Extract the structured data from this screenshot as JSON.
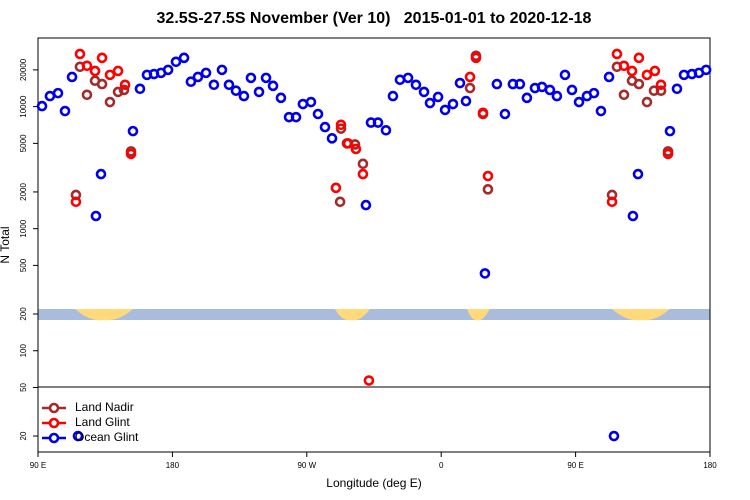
{
  "chart_data": {
    "type": "scatter",
    "title": "32.5S-27.5S November (Ver 10)   2015-01-01 to 2020-12-18",
    "x_label": "Longitude (deg E)",
    "y_label": "N Total",
    "xlim": [
      90,
      540
    ],
    "xticks": [
      {
        "value": 90,
        "label": "90 E"
      },
      {
        "value": 180,
        "label": "180"
      },
      {
        "value": 270,
        "label": "90 W"
      },
      {
        "value": 360,
        "label": "0"
      },
      {
        "value": 450,
        "label": "90 E"
      },
      {
        "value": 540,
        "label": "180"
      }
    ],
    "ylim": [
      14.8,
      36500
    ],
    "log_y": true,
    "yticks": [
      20,
      50,
      100,
      200,
      500,
      1000,
      2000,
      5000,
      10000,
      20000
    ],
    "legend": "bottom-left",
    "series": [
      {
        "name": "Land Nadir",
        "color": "#a52a2a",
        "x": [
          115.4,
          118.1,
          122.8,
          128.2,
          132.9,
          138.2,
          143.6,
          147.6,
          152.3,
          292.3,
          292.9,
          296.9,
          302.3,
          307.6,
          379.3,
          383.3,
          388,
          391.3,
          474.4,
          477.7,
          482.4,
          487.8,
          492.4,
          497.8,
          502.5,
          507.2,
          511.9
        ],
        "values": [
          1890,
          21200,
          12500,
          16300,
          15300,
          10900,
          13200,
          13700,
          4300,
          1660,
          6600,
          5000,
          4900,
          3400,
          14200,
          26100,
          8700,
          2100,
          1890,
          21200,
          12500,
          16300,
          15300,
          10900,
          13500,
          13500,
          4300
        ]
      },
      {
        "name": "Land Glint",
        "color": "#ff0000",
        "x": [
          115.4,
          118.1,
          122.8,
          128.2,
          132.9,
          138.2,
          143.6,
          148.3,
          152.3,
          289.5,
          292.9,
          297.6,
          302.9,
          307.6,
          311.6,
          379.3,
          383.3,
          388,
          391.3,
          474.4,
          477.7,
          482.4,
          487.8,
          492.4,
          497.8,
          503.1,
          507.2,
          511.9
        ],
        "values": [
          1660,
          27000,
          21600,
          19600,
          25100,
          18200,
          19600,
          15100,
          4100,
          2160,
          7100,
          5000,
          4500,
          2800,
          57,
          17500,
          25100,
          8900,
          2700,
          1660,
          27000,
          21600,
          19600,
          25100,
          18200,
          19600,
          15100,
          4100
        ]
      },
      {
        "name": "Ocean Glint",
        "color": "#0000ee",
        "x": [
          92.7,
          98,
          103.4,
          108.1,
          112.8,
          116.8,
          128.8,
          132.2,
          153.6,
          158.3,
          163,
          167.7,
          172.4,
          177.1,
          182.4,
          187.8,
          192.4,
          197.1,
          202.5,
          207.8,
          213.2,
          217.9,
          222.6,
          227.9,
          232.6,
          238,
          242.7,
          247.4,
          252.7,
          258.1,
          262.8,
          267.4,
          272.8,
          277.5,
          282.2,
          286.9,
          309.6,
          313,
          317.7,
          323,
          327.7,
          332.4,
          337.8,
          343.1,
          348.5,
          352.5,
          357.9,
          362.6,
          367.9,
          372.6,
          376.6,
          389.3,
          397.3,
          402.7,
          408,
          412.7,
          417.4,
          422.8,
          427.5,
          432.8,
          437.5,
          442.9,
          447.6,
          452.3,
          457.6,
          462.3,
          467,
          472.4,
          475.7,
          488.4,
          491.8,
          513.2,
          517.9,
          522.6,
          527.9,
          532.6,
          537.4
        ],
        "values": [
          10100,
          12200,
          12900,
          9200,
          17500,
          20,
          1270,
          2800,
          6300,
          14000,
          18200,
          18500,
          18900,
          20000,
          23300,
          25100,
          16000,
          17500,
          18900,
          15100,
          20000,
          15100,
          13500,
          12200,
          17200,
          13200,
          17200,
          14800,
          11800,
          8200,
          8200,
          10500,
          10900,
          8700,
          6800,
          5500,
          1560,
          7400,
          7400,
          6400,
          12200,
          16600,
          17200,
          15100,
          13200,
          10700,
          12000,
          9400,
          10500,
          15600,
          11100,
          430,
          15300,
          8700,
          15300,
          15300,
          11800,
          14200,
          14500,
          13700,
          12200,
          18200,
          13700,
          10900,
          12200,
          12900,
          9200,
          17500,
          20,
          1270,
          2800,
          6300,
          14000,
          18200,
          18500,
          18900,
          20000
        ]
      }
    ]
  }
}
